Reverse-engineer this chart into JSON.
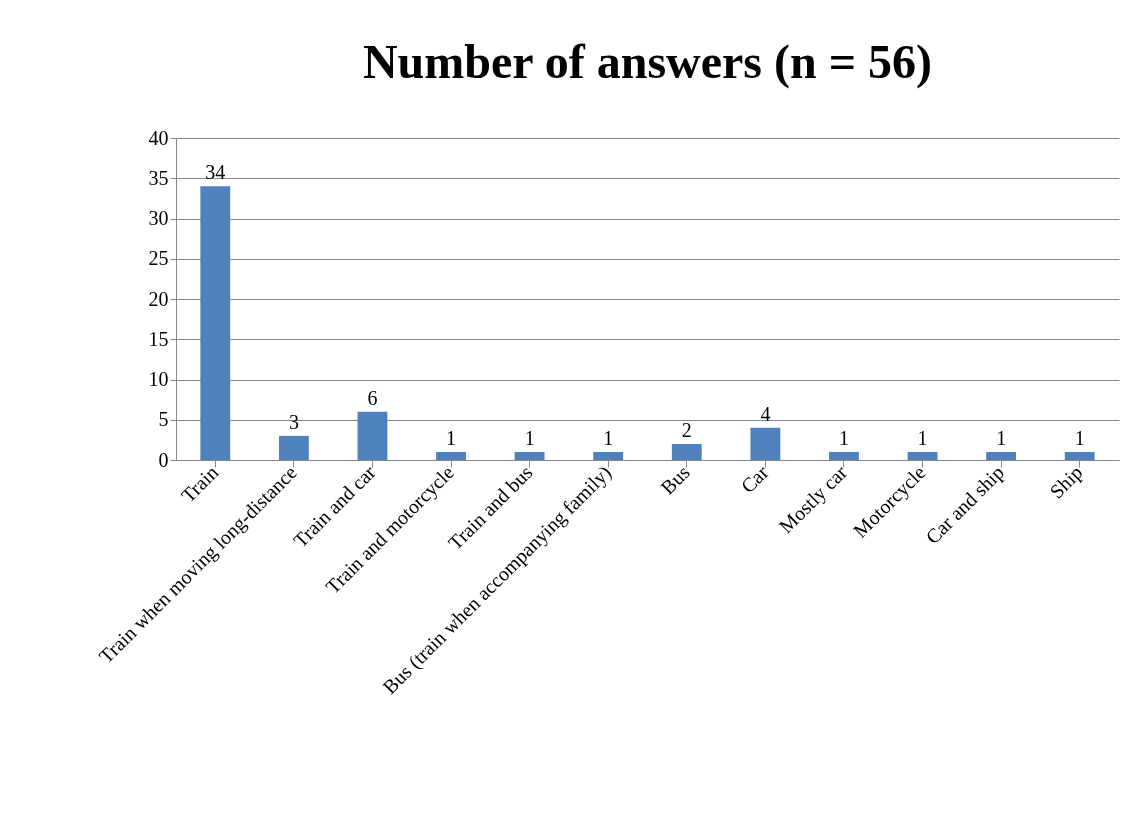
{
  "chart_data": {
    "type": "bar",
    "title": "Number of answers (n = 56)",
    "categories": [
      "Train",
      "Train when moving long-distance",
      "Train and car",
      "Train and motorcycle",
      "Train and bus",
      "Bus (train when accompanying family)",
      "Bus",
      "Car",
      "Mostly car",
      "Motorcycle",
      "Car and ship",
      "Ship"
    ],
    "values": [
      34,
      3,
      6,
      1,
      1,
      1,
      2,
      4,
      1,
      1,
      1,
      1
    ],
    "color": "#4f81bd",
    "ylim": [
      0,
      40
    ],
    "yticks": [
      0,
      5,
      10,
      15,
      20,
      25,
      30,
      35,
      40
    ],
    "grid": "y",
    "data_labels": true
  }
}
